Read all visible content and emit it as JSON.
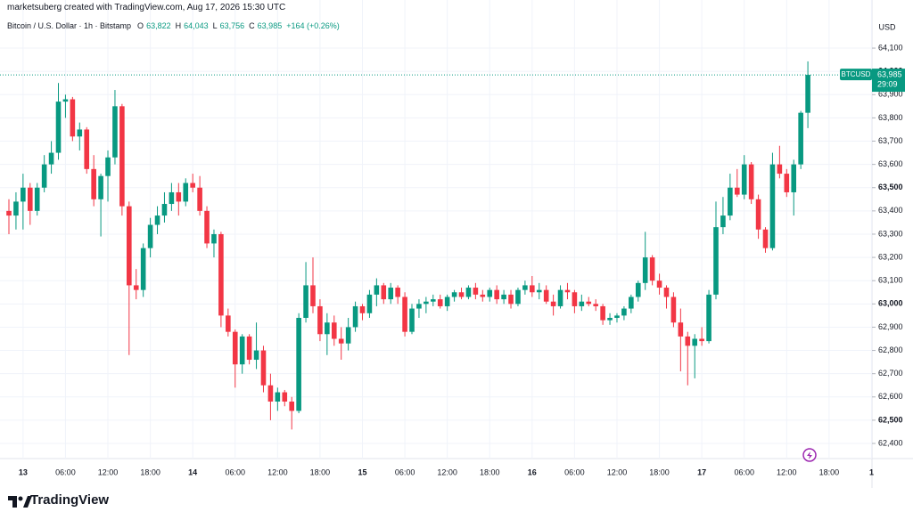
{
  "chart_data": {
    "type": "candlestick",
    "attribution": "marketsuberg created with TradingView.com, Aug 17, 2026 15:30 UTC",
    "title": "Bitcoin / U.S. Dollar · 1h · Bitstamp",
    "legend_values": [
      {
        "key": "O",
        "value": "63,822"
      },
      {
        "key": "H",
        "value": "64,043"
      },
      {
        "key": "L",
        "value": "63,756"
      },
      {
        "key": "C",
        "value": "63,985"
      }
    ],
    "change": "+164 (+0.26%)",
    "currency": "USD",
    "last_price_tag": {
      "symbol": "BTCUSD",
      "price": "63,985",
      "countdown": "29:09"
    },
    "brand": "TradingView",
    "up_color": "#089981",
    "down_color": "#f23645",
    "grid": true,
    "open": [
      63400,
      63380,
      63440,
      63500,
      63400,
      63500,
      63600,
      63650,
      63870,
      63880,
      63720,
      63750,
      63580,
      63450,
      63550,
      63630,
      63850,
      63420,
      63080,
      63060,
      63240,
      63340,
      63380,
      63430,
      63480,
      63440,
      63520,
      63500,
      63400,
      63260,
      63300,
      62950,
      62880,
      62740,
      62860,
      62760,
      62800,
      62650,
      62580,
      62620,
      62580,
      62540,
      62940,
      63080,
      62990,
      62870,
      62920,
      62850,
      62830,
      62900,
      62990,
      62960,
      63040,
      63080,
      63020,
      63070,
      63030,
      62880,
      62980,
      63000,
      63010,
      63020,
      62990,
      63030,
      63050,
      63030,
      63070,
      63040,
      63030,
      63060,
      63020,
      63040,
      63000,
      63060,
      63080,
      63050,
      63060,
      63010,
      62990,
      63060,
      63050,
      62990,
      63010,
      63000,
      62990,
      62930,
      62940,
      62950,
      62980,
      63030,
      63090,
      63200,
      63100,
      63070,
      63030,
      62920,
      62860,
      62820,
      62850,
      62840,
      63040,
      63330,
      63380,
      63500,
      63470,
      63600,
      63450,
      63320,
      63240,
      63600,
      63560,
      63480,
      63600,
      63822
    ],
    "high": [
      63450,
      63480,
      63560,
      63520,
      63520,
      63640,
      63700,
      63950,
      63900,
      63890,
      63780,
      63760,
      63640,
      63560,
      63660,
      63920,
      63860,
      63440,
      63150,
      63260,
      63370,
      63420,
      63480,
      63520,
      63520,
      63540,
      63560,
      63550,
      63420,
      63320,
      63310,
      62980,
      62890,
      62870,
      62870,
      62920,
      62820,
      62700,
      62640,
      62630,
      62600,
      62960,
      63180,
      63200,
      63020,
      62960,
      62950,
      62900,
      62940,
      63010,
      63000,
      63060,
      63110,
      63090,
      63090,
      63080,
      63050,
      63000,
      63020,
      63030,
      63040,
      63040,
      63040,
      63060,
      63070,
      63080,
      63090,
      63060,
      63070,
      63080,
      63060,
      63060,
      63070,
      63100,
      63120,
      63090,
      63080,
      63040,
      63080,
      63090,
      63060,
      63040,
      63030,
      63020,
      63000,
      62960,
      62960,
      62990,
      63040,
      63100,
      63310,
      63210,
      63130,
      63080,
      63050,
      62980,
      62880,
      62870,
      62900,
      63060,
      63440,
      63460,
      63560,
      63580,
      63640,
      63610,
      63470,
      63330,
      63650,
      63680,
      63580,
      63620,
      63830,
      64043
    ],
    "low": [
      63300,
      63320,
      63320,
      63340,
      63380,
      63480,
      63560,
      63620,
      63800,
      63700,
      63660,
      63560,
      63420,
      63290,
      63440,
      63600,
      63380,
      62780,
      63020,
      63030,
      63200,
      63300,
      63350,
      63400,
      63380,
      63420,
      63480,
      63380,
      63240,
      63200,
      62900,
      62860,
      62640,
      62700,
      62740,
      62720,
      62620,
      62500,
      62540,
      62560,
      62460,
      62530,
      62920,
      62960,
      62840,
      62780,
      62820,
      62760,
      62800,
      62880,
      62930,
      62940,
      62990,
      63000,
      63000,
      63000,
      62860,
      62870,
      62940,
      62960,
      62990,
      62980,
      62970,
      63010,
      63020,
      63020,
      63020,
      63010,
      63010,
      63000,
      63000,
      62980,
      62990,
      63040,
      63030,
      63020,
      63000,
      62950,
      62980,
      63020,
      62960,
      62970,
      62990,
      62970,
      62910,
      62910,
      62920,
      62930,
      62960,
      63010,
      63060,
      63080,
      63040,
      62980,
      62900,
      62710,
      62650,
      62680,
      62820,
      62830,
      63020,
      63300,
      63360,
      63460,
      63450,
      63430,
      63280,
      63220,
      63230,
      63540,
      63460,
      63380,
      63580,
      63756
    ],
    "close": [
      63380,
      63440,
      63500,
      63400,
      63500,
      63600,
      63650,
      63870,
      63880,
      63720,
      63750,
      63580,
      63450,
      63550,
      63630,
      63850,
      63420,
      63080,
      63060,
      63240,
      63340,
      63380,
      63430,
      63480,
      63440,
      63520,
      63500,
      63400,
      63260,
      63300,
      62950,
      62880,
      62740,
      62860,
      62760,
      62800,
      62650,
      62580,
      62620,
      62580,
      62540,
      62940,
      63080,
      62990,
      62870,
      62920,
      62850,
      62830,
      62900,
      62990,
      62960,
      63040,
      63080,
      63020,
      63070,
      63030,
      62880,
      62980,
      63000,
      63010,
      63020,
      62990,
      63030,
      63050,
      63030,
      63070,
      63040,
      63030,
      63060,
      63020,
      63040,
      63000,
      63060,
      63080,
      63050,
      63060,
      63010,
      62990,
      63060,
      63050,
      62990,
      63010,
      63000,
      62990,
      62930,
      62940,
      62950,
      62980,
      63030,
      63090,
      63200,
      63100,
      63070,
      63030,
      62920,
      62860,
      62820,
      62850,
      62840,
      63040,
      63330,
      63380,
      63500,
      63470,
      63600,
      63450,
      63320,
      63240,
      63600,
      63560,
      63480,
      63600,
      63822,
      63985
    ],
    "ylim": [
      62335,
      64238
    ],
    "yticks": [
      {
        "value": 62400,
        "label": "62,400"
      },
      {
        "value": 62500,
        "label": "62,500"
      },
      {
        "value": 62600,
        "label": "62,600"
      },
      {
        "value": 62700,
        "label": "62,700"
      },
      {
        "value": 62800,
        "label": "62,800"
      },
      {
        "value": 62900,
        "label": "62,900"
      },
      {
        "value": 63000,
        "label": "63,000"
      },
      {
        "value": 63100,
        "label": "63,100"
      },
      {
        "value": 63200,
        "label": "63,200"
      },
      {
        "value": 63300,
        "label": "63,300"
      },
      {
        "value": 63400,
        "label": "63,400"
      },
      {
        "value": 63500,
        "label": "63,500"
      },
      {
        "value": 63600,
        "label": "63,600"
      },
      {
        "value": 63700,
        "label": "63,700"
      },
      {
        "value": 63800,
        "label": "63,800"
      },
      {
        "value": 63900,
        "label": "63,900"
      },
      {
        "value": 64000,
        "label": "64,000"
      },
      {
        "value": 64100,
        "label": "64,100"
      }
    ],
    "xticks": [
      {
        "value": 2,
        "label": "13"
      },
      {
        "value": 8,
        "label": "06:00"
      },
      {
        "value": 14,
        "label": "12:00"
      },
      {
        "value": 20,
        "label": "18:00"
      },
      {
        "value": 26,
        "label": "14"
      },
      {
        "value": 32,
        "label": "06:00"
      },
      {
        "value": 38,
        "label": "12:00"
      },
      {
        "value": 44,
        "label": "18:00"
      },
      {
        "value": 50,
        "label": "15"
      },
      {
        "value": 56,
        "label": "06:00"
      },
      {
        "value": 62,
        "label": "12:00"
      },
      {
        "value": 68,
        "label": "18:00"
      },
      {
        "value": 74,
        "label": "16"
      },
      {
        "value": 80,
        "label": "06:00"
      },
      {
        "value": 86,
        "label": "12:00"
      },
      {
        "value": 92,
        "label": "18:00"
      },
      {
        "value": 98,
        "label": "17"
      },
      {
        "value": 104,
        "label": "06:00"
      },
      {
        "value": 110,
        "label": "12:00"
      },
      {
        "value": 116,
        "label": "18:00"
      },
      {
        "value": 122,
        "label": "1"
      }
    ]
  }
}
